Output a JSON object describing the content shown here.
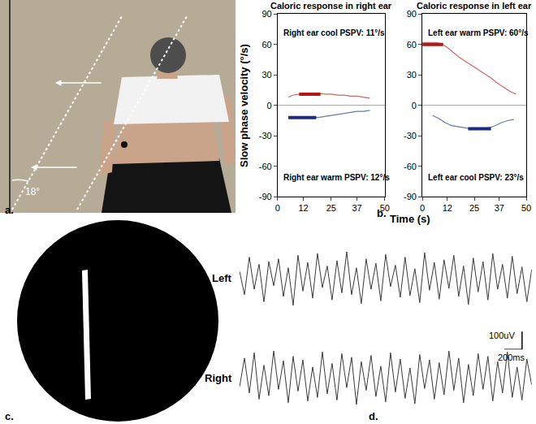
{
  "chart_data": [
    {
      "type": "line",
      "title": "Caloric response in right ear",
      "x_label": "Time (s)",
      "y_label": "Slow phase velocity (°/s)",
      "xlim": [
        0,
        50
      ],
      "xticks": [
        0,
        12,
        25,
        37,
        50
      ],
      "ylim": [
        -90,
        90
      ],
      "yticks": [
        -90,
        -60,
        -30,
        0,
        30,
        60,
        90
      ],
      "grid": false,
      "annotations": [
        "Right ear cool PSPV: 11°/s",
        "Right ear warm PSPV: 12°/s"
      ],
      "series": [
        {
          "color": "#c86a6a",
          "line_style": "solid",
          "x": [
            5,
            7,
            10,
            13,
            16,
            19,
            22,
            25,
            28,
            31,
            34,
            37,
            40,
            43
          ],
          "values": [
            8,
            10,
            11,
            12,
            12,
            12,
            11,
            11,
            10,
            10,
            9,
            9,
            8,
            7
          ]
        },
        {
          "color": "#6a7aa6",
          "line_style": "solid",
          "x": [
            5,
            7,
            10,
            13,
            16,
            19,
            22,
            25,
            28,
            31,
            34,
            37,
            40,
            43
          ],
          "values": [
            -11,
            -12,
            -12,
            -12,
            -12,
            -12,
            -11,
            -10,
            -9,
            -8,
            -7,
            -6,
            -6,
            -5
          ]
        },
        {
          "color": "#b01818",
          "line_style": "bold",
          "x": [
            10,
            20
          ],
          "values": [
            11,
            11
          ]
        },
        {
          "color": "#1a2a8a",
          "line_style": "bold",
          "x": [
            5,
            18
          ],
          "values": [
            -12,
            -12
          ]
        }
      ]
    },
    {
      "type": "line",
      "title": "Caloric response in left ear",
      "xlim": [
        0,
        50
      ],
      "xticks": [
        0,
        12,
        25,
        37,
        50
      ],
      "ylim": [
        -90,
        90
      ],
      "yticks": [
        -90,
        -60,
        -30,
        0,
        30,
        60,
        90
      ],
      "grid": false,
      "annotations": [
        "Left ear warm PSPV: 60°/s",
        "Left ear cool PSPV: 23°/s"
      ],
      "series": [
        {
          "color": "#c86a6a",
          "line_style": "solid",
          "x": [
            0,
            3,
            6,
            9,
            12,
            15,
            18,
            21,
            24,
            27,
            30,
            33,
            36,
            39,
            42,
            45
          ],
          "values": [
            62,
            62,
            62,
            61,
            57,
            52,
            47,
            43,
            39,
            35,
            31,
            27,
            22,
            18,
            14,
            11
          ]
        },
        {
          "color": "#6a7aa6",
          "line_style": "solid",
          "x": [
            5,
            8,
            11,
            14,
            17,
            20,
            23,
            26,
            29,
            32,
            35,
            38,
            41,
            44
          ],
          "values": [
            -10,
            -13,
            -17,
            -20,
            -21,
            -22,
            -23,
            -23,
            -23,
            -22,
            -20,
            -17,
            -15,
            -14
          ]
        },
        {
          "color": "#b01818",
          "line_style": "bold",
          "x": [
            0,
            10
          ],
          "values": [
            60,
            60
          ]
        },
        {
          "color": "#1a2a8a",
          "line_style": "bold",
          "x": [
            22,
            33
          ],
          "values": [
            -23,
            -23
          ]
        }
      ]
    },
    {
      "type": "line",
      "tick_labels": false,
      "grid": false,
      "xlim": [
        0,
        3300
      ],
      "ylim": [
        -250,
        250
      ],
      "scale_bar": {
        "x": 200,
        "x_label": "200ms",
        "y": 100,
        "y_label": "100uV"
      },
      "x": [
        0,
        55,
        110,
        165,
        220,
        275,
        330,
        385,
        440,
        495,
        550,
        605,
        660,
        715,
        770,
        825,
        880,
        935,
        990,
        1045,
        1100,
        1155,
        1210,
        1265,
        1320,
        1375,
        1430,
        1485,
        1540,
        1595,
        1650,
        1705,
        1760,
        1815,
        1870,
        1925,
        1980,
        2035,
        2090,
        2145,
        2200,
        2255,
        2310,
        2365,
        2420,
        2475,
        2530,
        2585,
        2640,
        2695,
        2750,
        2805,
        2860,
        2915,
        2970,
        3025,
        3080,
        3135,
        3190,
        3245,
        3300
      ],
      "series": [
        {
          "name": "Left",
          "color": "#3a3a3a",
          "line_style": "solid",
          "values": [
            40,
            -90,
            120,
            -60,
            80,
            -130,
            95,
            -40,
            110,
            -100,
            60,
            -150,
            130,
            -70,
            90,
            -110,
            140,
            -50,
            70,
            -120,
            100,
            -80,
            150,
            -90,
            60,
            -140,
            110,
            -60,
            85,
            -125,
            135,
            -45,
            75,
            -105,
            120,
            -95,
            55,
            -135,
            145,
            -65,
            90,
            -115,
            105,
            -55,
            130,
            -100,
            70,
            -145,
            115,
            -75,
            95,
            -120,
            140,
            -60,
            80,
            -110,
            125,
            -85,
            65,
            -130,
            50
          ]
        },
        {
          "name": "Right",
          "color": "#3a3a3a",
          "line_style": "solid",
          "values": [
            -50,
            110,
            -85,
            140,
            -120,
            70,
            -100,
            150,
            -65,
            95,
            -140,
            120,
            -75,
            100,
            -130,
            60,
            -110,
            145,
            -90,
            80,
            -125,
            135,
            -55,
            115,
            -150,
            90,
            -70,
            125,
            -105,
            65,
            -135,
            140,
            -80,
            105,
            -115,
            55,
            -145,
            130,
            -60,
            100,
            -120,
            85,
            -95,
            150,
            -70,
            110,
            -140,
            75,
            -100,
            135,
            -65,
            120,
            -130,
            90,
            -85,
            145,
            -110,
            60,
            -125,
            105,
            -40
          ]
        }
      ]
    }
  ],
  "figure": {
    "panel_a": {
      "label": "a.",
      "angle_label": "18°"
    },
    "panel_b": {
      "label": "b."
    },
    "panel_c": {
      "label": "c."
    },
    "panel_d": {
      "label": "d."
    }
  }
}
